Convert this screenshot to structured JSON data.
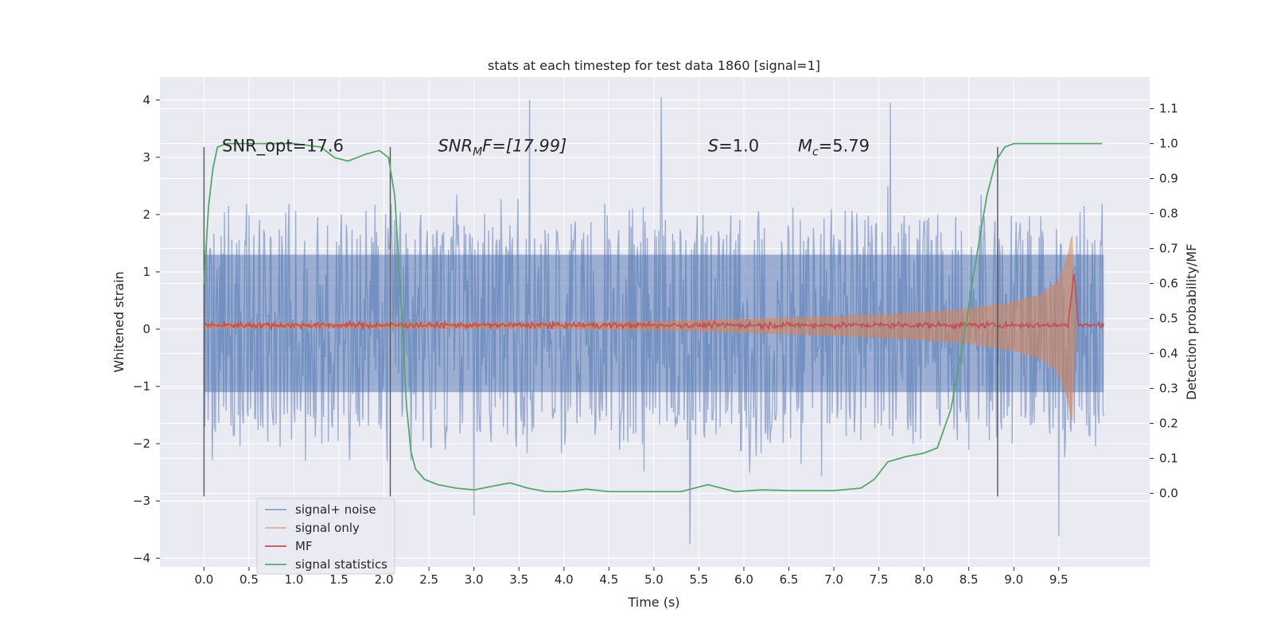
{
  "chart_data": {
    "type": "line",
    "title": "stats at each timestep for test data 1860 [signal=1]",
    "xlabel": "Time (s)",
    "ylabel": "Whitened strain",
    "y2label": "Detection probability/MF",
    "xlim": [
      -0.49,
      10.51
    ],
    "ylim": [
      -4.15,
      4.4
    ],
    "y2lim": [
      -0.21,
      1.19
    ],
    "x_ticks": [
      0.0,
      0.5,
      1.0,
      1.5,
      2.0,
      2.5,
      3.0,
      3.5,
      4.0,
      4.5,
      5.0,
      5.5,
      6.0,
      6.5,
      7.0,
      7.5,
      8.0,
      8.5,
      9.0,
      9.5
    ],
    "x_tick_labels": [
      "0.0",
      "0.5",
      "1.0",
      "1.5",
      "2.0",
      "2.5",
      "3.0",
      "3.5",
      "4.0",
      "4.5",
      "5.0",
      "5.5",
      "6.0",
      "6.5",
      "7.0",
      "7.5",
      "8.0",
      "8.5",
      "9.0",
      "9.5"
    ],
    "y_ticks": [
      4,
      3,
      2,
      1,
      0,
      -1,
      -2,
      -3,
      -4
    ],
    "y_tick_labels": [
      "4",
      "3",
      "2",
      "1",
      "0",
      "−1",
      "−2",
      "−3",
      "−4"
    ],
    "y2_ticks": [
      1.1,
      1.0,
      0.9,
      0.8,
      0.7,
      0.6,
      0.5,
      0.4,
      0.3,
      0.2,
      0.1,
      0.0
    ],
    "y2_tick_labels": [
      "1.1",
      "1.0",
      "0.9",
      "0.8",
      "0.7",
      "0.6",
      "0.5",
      "0.4",
      "0.3",
      "0.2",
      "0.1",
      "0.0"
    ],
    "grid": true,
    "legend_position": "lower-left",
    "annotations": [
      {
        "text": "SNR_opt=17.6",
        "x": 0.2,
        "y": 3.2
      },
      {
        "text": "SNR_MF=[17.99]",
        "x": 2.6,
        "y": 3.2
      },
      {
        "text": "S=1.0",
        "x": 5.6,
        "y": 3.2
      },
      {
        "text": "M_c=5.79",
        "x": 6.6,
        "y": 3.2
      }
    ],
    "vertical_lines": [
      {
        "x": 0.0,
        "y_range": [
          -2.92,
          3.18
        ]
      },
      {
        "x": 2.07,
        "y_range": [
          -2.92,
          3.18
        ]
      },
      {
        "x": 8.82,
        "y_range": [
          -2.92,
          3.18
        ]
      }
    ],
    "series": [
      {
        "name": "signal+ noise",
        "axis": "left",
        "color": "#4c72b0",
        "description_of_shape": "dense noise band roughly ±1.3 with spikes up to about ±4, from t=0 to t=10",
        "x": [
          0.0,
          10.0
        ],
        "envelope_typical": 1.35,
        "peak_examples": [
          {
            "x": 3.62,
            "y": 4.0
          },
          {
            "x": 5.08,
            "y": 4.05
          },
          {
            "x": 7.63,
            "y": 3.95
          },
          {
            "x": 5.4,
            "y": -3.75
          },
          {
            "x": 9.5,
            "y": -3.62
          },
          {
            "x": 3.0,
            "y": -3.25
          }
        ]
      },
      {
        "name": "signal only",
        "axis": "left",
        "color": "#dd8452",
        "description_of_shape": "chirp with growing amplitude, merging around t=9.66",
        "x": [
          0.0,
          4.0,
          5.0,
          6.0,
          7.0,
          7.5,
          8.0,
          8.5,
          9.0,
          9.3,
          9.5,
          9.6,
          9.65,
          9.66,
          9.7
        ],
        "amplitude": [
          0.05,
          0.06,
          0.08,
          0.12,
          0.17,
          0.2,
          0.24,
          0.3,
          0.42,
          0.55,
          0.8,
          1.25,
          1.7,
          1.0,
          0.0
        ]
      },
      {
        "name": "MF",
        "axis": "left",
        "color": "#c44e52",
        "description_of_shape": "flat noisy trace near 0.07 with a spike near t=9.67",
        "x": [
          0.0,
          9.6,
          9.67,
          9.72,
          10.0
        ],
        "y": [
          0.07,
          0.07,
          1.0,
          0.07,
          0.07
        ]
      },
      {
        "name": "signal statistics",
        "axis": "right",
        "color": "#55a868",
        "x": [
          0.0,
          0.05,
          0.1,
          0.15,
          0.25,
          0.5,
          1.0,
          1.3,
          1.45,
          1.6,
          1.7,
          1.8,
          1.95,
          2.05,
          2.12,
          2.2,
          2.25,
          2.3,
          2.35,
          2.45,
          2.6,
          2.8,
          3.0,
          3.2,
          3.4,
          3.6,
          3.8,
          4.0,
          4.25,
          4.5,
          5.0,
          5.3,
          5.6,
          5.9,
          6.2,
          6.5,
          7.0,
          7.3,
          7.45,
          7.6,
          7.8,
          8.0,
          8.15,
          8.3,
          8.45,
          8.55,
          8.7,
          8.8,
          8.9,
          9.0,
          9.2,
          9.6,
          9.98
        ],
        "y": [
          0.6,
          0.82,
          0.93,
          0.99,
          1.0,
          1.0,
          1.0,
          0.99,
          0.96,
          0.95,
          0.96,
          0.97,
          0.98,
          0.96,
          0.85,
          0.5,
          0.25,
          0.12,
          0.07,
          0.04,
          0.025,
          0.015,
          0.01,
          0.02,
          0.03,
          0.015,
          0.005,
          0.005,
          0.012,
          0.005,
          0.005,
          0.005,
          0.025,
          0.005,
          0.01,
          0.008,
          0.008,
          0.015,
          0.04,
          0.09,
          0.105,
          0.115,
          0.13,
          0.24,
          0.45,
          0.62,
          0.85,
          0.95,
          0.99,
          1.0,
          1.0,
          1.0,
          1.0
        ]
      }
    ]
  }
}
